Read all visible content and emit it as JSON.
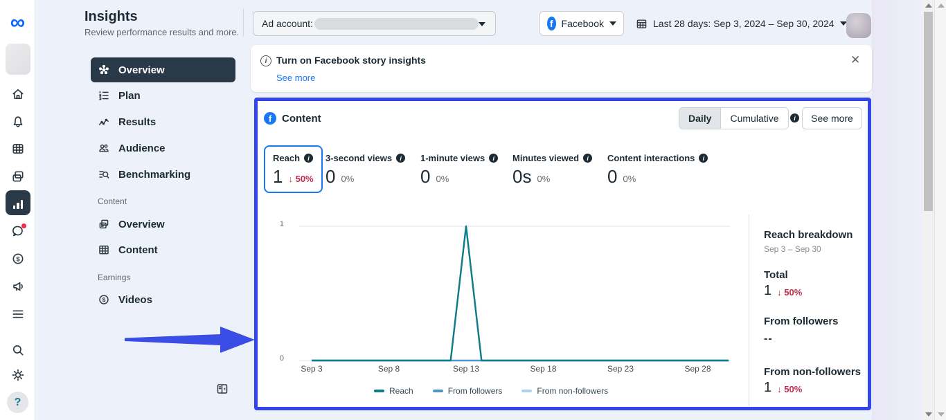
{
  "header": {
    "title": "Insights",
    "subtitle": "Review performance results and more."
  },
  "rail": {
    "icons": [
      "home",
      "notifications",
      "planner",
      "posts",
      "insights",
      "inbox",
      "monetization",
      "ads",
      "all-tools",
      "search",
      "settings",
      "help"
    ],
    "selected": "insights",
    "help_glyph": "?"
  },
  "topbar": {
    "ad_account_label": "Ad account:",
    "platform_selector": "Facebook",
    "date_range": "Last 28 days: Sep 3, 2024 – Sep 30, 2024"
  },
  "nav": {
    "items": [
      {
        "label": "Overview",
        "icon": "overview-network",
        "selected": true
      },
      {
        "label": "Plan",
        "icon": "numbered-list",
        "selected": false
      },
      {
        "label": "Results",
        "icon": "line-chart",
        "selected": false
      },
      {
        "label": "Audience",
        "icon": "people",
        "selected": false
      },
      {
        "label": "Benchmarking",
        "icon": "search-list",
        "selected": false
      }
    ],
    "sections": [
      {
        "label": "Content",
        "items": [
          {
            "label": "Overview",
            "icon": "pages"
          },
          {
            "label": "Content",
            "icon": "table"
          }
        ]
      },
      {
        "label": "Earnings",
        "items": [
          {
            "label": "Videos",
            "icon": "dollar-circle"
          }
        ]
      }
    ]
  },
  "banner": {
    "title": "Turn on Facebook story insights",
    "link_label": "See more",
    "close_glyph": "✕"
  },
  "content_card": {
    "title": "Content",
    "view_toggle": {
      "options": [
        "Daily",
        "Cumulative"
      ],
      "selected": "Daily"
    },
    "see_more_label": "See more",
    "metrics": [
      {
        "label": "Reach",
        "value": "1",
        "arrow": "↓",
        "delta": "50%",
        "direction": "down",
        "selected": true
      },
      {
        "label": "3-second views",
        "value": "0",
        "delta": "0%",
        "direction": "flat",
        "selected": false
      },
      {
        "label": "1-minute views",
        "value": "0",
        "delta": "0%",
        "direction": "flat",
        "selected": false
      },
      {
        "label": "Minutes viewed",
        "value": "0s",
        "delta": "0%",
        "direction": "flat",
        "selected": false
      },
      {
        "label": "Content interactions",
        "value": "0",
        "delta": "0%",
        "direction": "flat",
        "selected": false
      }
    ],
    "chart_data": {
      "type": "line",
      "title": "Content",
      "x": [
        "Sep 3",
        "Sep 4",
        "Sep 5",
        "Sep 6",
        "Sep 7",
        "Sep 8",
        "Sep 9",
        "Sep 10",
        "Sep 11",
        "Sep 12",
        "Sep 13",
        "Sep 14",
        "Sep 15",
        "Sep 16",
        "Sep 17",
        "Sep 18",
        "Sep 19",
        "Sep 20",
        "Sep 21",
        "Sep 22",
        "Sep 23",
        "Sep 24",
        "Sep 25",
        "Sep 26",
        "Sep 27",
        "Sep 28",
        "Sep 29",
        "Sep 30"
      ],
      "x_tick_labels": [
        "Sep 3",
        "Sep 8",
        "Sep 13",
        "Sep 18",
        "Sep 23",
        "Sep 28"
      ],
      "x_tick_indices": [
        0,
        5,
        10,
        15,
        20,
        25
      ],
      "ylim": [
        0,
        1
      ],
      "ytick_labels": [
        "1",
        "0"
      ],
      "grid": "horizontal",
      "legend_position": "bottom",
      "series": [
        {
          "name": "From non-followers",
          "color": "#a9d6ed",
          "values": [
            0,
            0,
            0,
            0,
            0,
            0,
            0,
            0,
            0,
            0,
            1,
            0,
            0,
            0,
            0,
            0,
            0,
            0,
            0,
            0,
            0,
            0,
            0,
            0,
            0,
            0,
            0,
            0
          ]
        },
        {
          "name": "From followers",
          "color": "#4d95c9",
          "values": [
            0,
            0,
            0,
            0,
            0,
            0,
            0,
            0,
            0,
            0,
            0,
            0,
            0,
            0,
            0,
            0,
            0,
            0,
            0,
            0,
            0,
            0,
            0,
            0,
            0,
            0,
            0,
            0
          ]
        },
        {
          "name": "Reach",
          "color": "#0e7d8a",
          "values": [
            0,
            0,
            0,
            0,
            0,
            0,
            0,
            0,
            0,
            0,
            1,
            0,
            0,
            0,
            0,
            0,
            0,
            0,
            0,
            0,
            0,
            0,
            0,
            0,
            0,
            0,
            0,
            0
          ]
        }
      ],
      "legend_order": [
        "Reach",
        "From followers",
        "From non-followers"
      ]
    },
    "breakdown": {
      "title": "Reach breakdown",
      "date_range": "Sep 3 – Sep 30",
      "rows": [
        {
          "label": "Total",
          "value": "1",
          "arrow": "↓",
          "delta": "50%",
          "direction": "down"
        },
        {
          "label": "From followers",
          "value": "--"
        },
        {
          "label": "From non-followers",
          "value": "1",
          "arrow": "↓",
          "delta": "50%",
          "direction": "down"
        }
      ]
    }
  },
  "colors": {
    "accent_blue": "#1877f2",
    "annotation_blue": "#3145e8",
    "negative_red": "#c32b4b",
    "reach_teal": "#0e7d8a",
    "followers_blue": "#4d95c9",
    "non_followers_blue": "#a9d6ed",
    "selected_nav": "#2a3947"
  }
}
